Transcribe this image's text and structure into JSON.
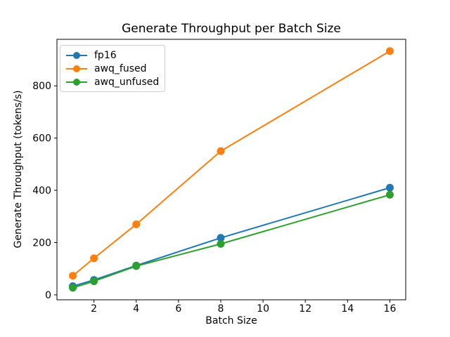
{
  "title": "Generate Throughput per Batch Size",
  "chart_data": {
    "type": "line",
    "title": "Generate Throughput per Batch Size",
    "xlabel": "Batch Size",
    "ylabel": "Generate Throughput (tokens/s)",
    "x": [
      1,
      2,
      4,
      8,
      16
    ],
    "series": [
      {
        "name": "fp16",
        "color": "#1f77b4",
        "values": [
          33,
          57,
          112,
          218,
          410
        ]
      },
      {
        "name": "awq_fused",
        "color": "#ff7f0e",
        "values": [
          73,
          140,
          270,
          550,
          933
        ]
      },
      {
        "name": "awq_unfused",
        "color": "#2ca02c",
        "values": [
          27,
          52,
          110,
          195,
          383
        ]
      }
    ],
    "x_ticks": [
      2,
      4,
      6,
      8,
      10,
      12,
      14,
      16
    ],
    "y_ticks": [
      0,
      200,
      400,
      600,
      800
    ],
    "xlim": [
      0.25,
      16.75
    ],
    "ylim": [
      -19,
      978
    ],
    "grid": false,
    "legend_position": "upper left",
    "marker": "circle",
    "text_color": "#000000",
    "spine_color": "#000000"
  }
}
